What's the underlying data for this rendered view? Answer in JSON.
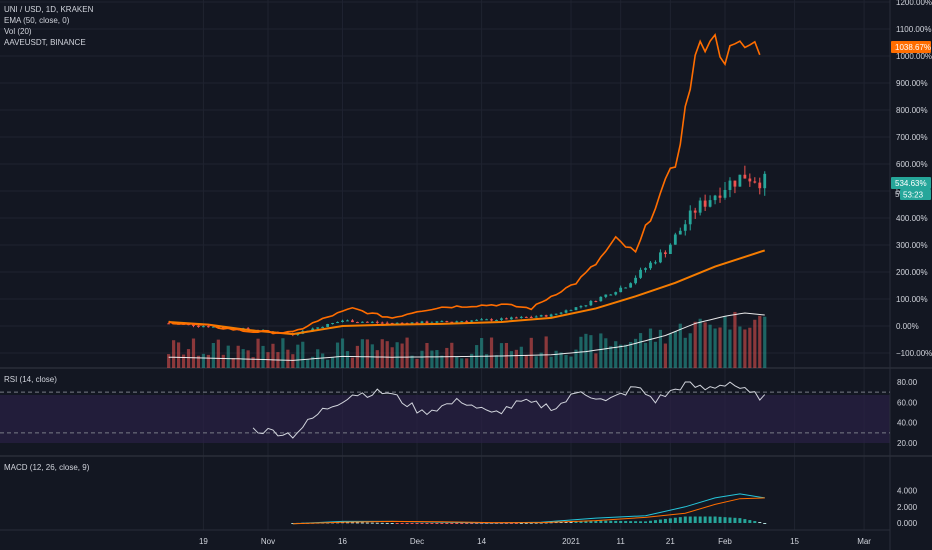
{
  "legend": {
    "main": [
      "UNI / USD, 1D, KRAKEN",
      "EMA (50, close, 0)",
      "Vol (20)",
      "AAVEUSDT, BINANCE"
    ],
    "rsi": "RSI (14, close)",
    "macd": "MACD (12, 26, close, 9)"
  },
  "price_axis": [
    "1200.00%",
    "1100.00%",
    "1000.00%",
    "900.00%",
    "800.00%",
    "700.00%",
    "600.00%",
    "500.00%",
    "400.00%",
    "300.00%",
    "200.00%",
    "100.00%",
    "0.00%",
    "−100.00%"
  ],
  "rsi_axis": [
    "80.00",
    "60.00",
    "40.00",
    "20.00"
  ],
  "macd_axis": [
    "4.000",
    "2.000",
    "0.000"
  ],
  "badges": {
    "aave": "1038.67%",
    "uni": "534.63%",
    "uni_frag": "50",
    "countdown": "53:23"
  },
  "time_axis": [
    "19",
    "Nov",
    "16",
    "Dec",
    "14",
    "2021",
    "11",
    "21",
    "Feb",
    "15",
    "Mar"
  ],
  "colors": {
    "bg": "#131722",
    "grid": "#1f2330",
    "up": "#26a69a",
    "down": "#ef5350",
    "aave": "#ff6d00",
    "ema": "#f57c00",
    "rsi_line": "#d1d4dc",
    "rsi_band": "#2a2144",
    "macd": "#26c6da",
    "signal": "#ff6d00",
    "vol_ma": "#ffffff"
  },
  "chart_data": {
    "type": "candlestick",
    "y_unit": "% change",
    "ylim": [
      -150,
      1200
    ],
    "aave_series": {
      "name": "AAVEUSDT, BINANCE",
      "x": [
        "2020-10-12",
        "2020-10-20",
        "2020-10-28",
        "2020-11-06",
        "2020-11-10",
        "2020-11-14",
        "2020-11-18",
        "2020-11-22",
        "2020-11-26",
        "2020-12-01",
        "2020-12-06",
        "2020-12-12",
        "2020-12-18",
        "2020-12-24",
        "2020-12-28",
        "2021-01-02",
        "2021-01-06",
        "2021-01-10",
        "2021-01-14",
        "2021-01-18",
        "2021-01-22",
        "2021-01-26",
        "2021-01-29",
        "2021-02-01",
        "2021-02-04",
        "2021-02-06",
        "2021-02-08"
      ],
      "y": [
        15,
        0,
        -20,
        -25,
        10,
        40,
        65,
        45,
        30,
        55,
        70,
        75,
        80,
        65,
        110,
        160,
        230,
        320,
        270,
        450,
        600,
        990,
        1080,
        1000,
        1030,
        1038,
        1038
      ]
    },
    "ema_values": {
      "name": "EMA (50, close, 0)",
      "x": [
        "2020-10-12",
        "2020-10-20",
        "2020-10-28",
        "2020-11-06",
        "2020-11-16",
        "2020-11-26",
        "2020-12-06",
        "2020-12-18",
        "2020-12-28",
        "2021-01-06",
        "2021-01-14",
        "2021-01-22",
        "2021-01-30",
        "2021-02-09"
      ],
      "y": [
        15,
        5,
        -15,
        -30,
        0,
        5,
        8,
        15,
        30,
        65,
        110,
        160,
        220,
        280
      ]
    },
    "uni_close": {
      "x": [
        "2020-10-12",
        "2020-10-26",
        "2020-11-06",
        "2020-11-16",
        "2020-11-26",
        "2020-12-06",
        "2020-12-18",
        "2020-12-28",
        "2021-01-04",
        "2021-01-12",
        "2021-01-20",
        "2021-01-26",
        "2021-02-01",
        "2021-02-05",
        "2021-02-09"
      ],
      "y": [
        10,
        -10,
        -30,
        20,
        10,
        15,
        25,
        40,
        80,
        150,
        280,
        430,
        520,
        560,
        534.63
      ]
    },
    "rsi": {
      "ylim": [
        20,
        80
      ],
      "bands": [
        30,
        70
      ],
      "x": [
        "2020-10-29",
        "2020-11-03",
        "2020-11-06",
        "2020-11-12",
        "2020-11-18",
        "2020-11-25",
        "2020-12-02",
        "2020-12-10",
        "2020-12-16",
        "2020-12-22",
        "2020-12-29",
        "2021-01-03",
        "2021-01-08",
        "2021-01-14",
        "2021-01-18",
        "2021-01-24",
        "2021-01-28",
        "2021-02-02",
        "2021-02-06",
        "2021-02-09"
      ],
      "y": [
        33,
        31,
        28,
        52,
        68,
        70,
        50,
        62,
        48,
        60,
        55,
        72,
        60,
        75,
        62,
        78,
        73,
        80,
        68,
        65
      ]
    },
    "macd": {
      "ylim": [
        -0.5,
        4.2
      ],
      "x": [
        "2020-11-06",
        "2020-11-16",
        "2020-11-26",
        "2020-12-06",
        "2020-12-16",
        "2020-12-26",
        "2021-01-06",
        "2021-01-16",
        "2021-01-24",
        "2021-01-30",
        "2021-02-04",
        "2021-02-09"
      ],
      "macd": [
        -0.1,
        0.2,
        0.2,
        0.1,
        0.0,
        0.1,
        0.6,
        0.9,
        2.0,
        3.1,
        3.6,
        3.1
      ],
      "signal": [
        -0.1,
        0.1,
        0.2,
        0.15,
        0.05,
        0.05,
        0.3,
        0.7,
        1.2,
        2.3,
        3.0,
        3.1
      ]
    }
  }
}
